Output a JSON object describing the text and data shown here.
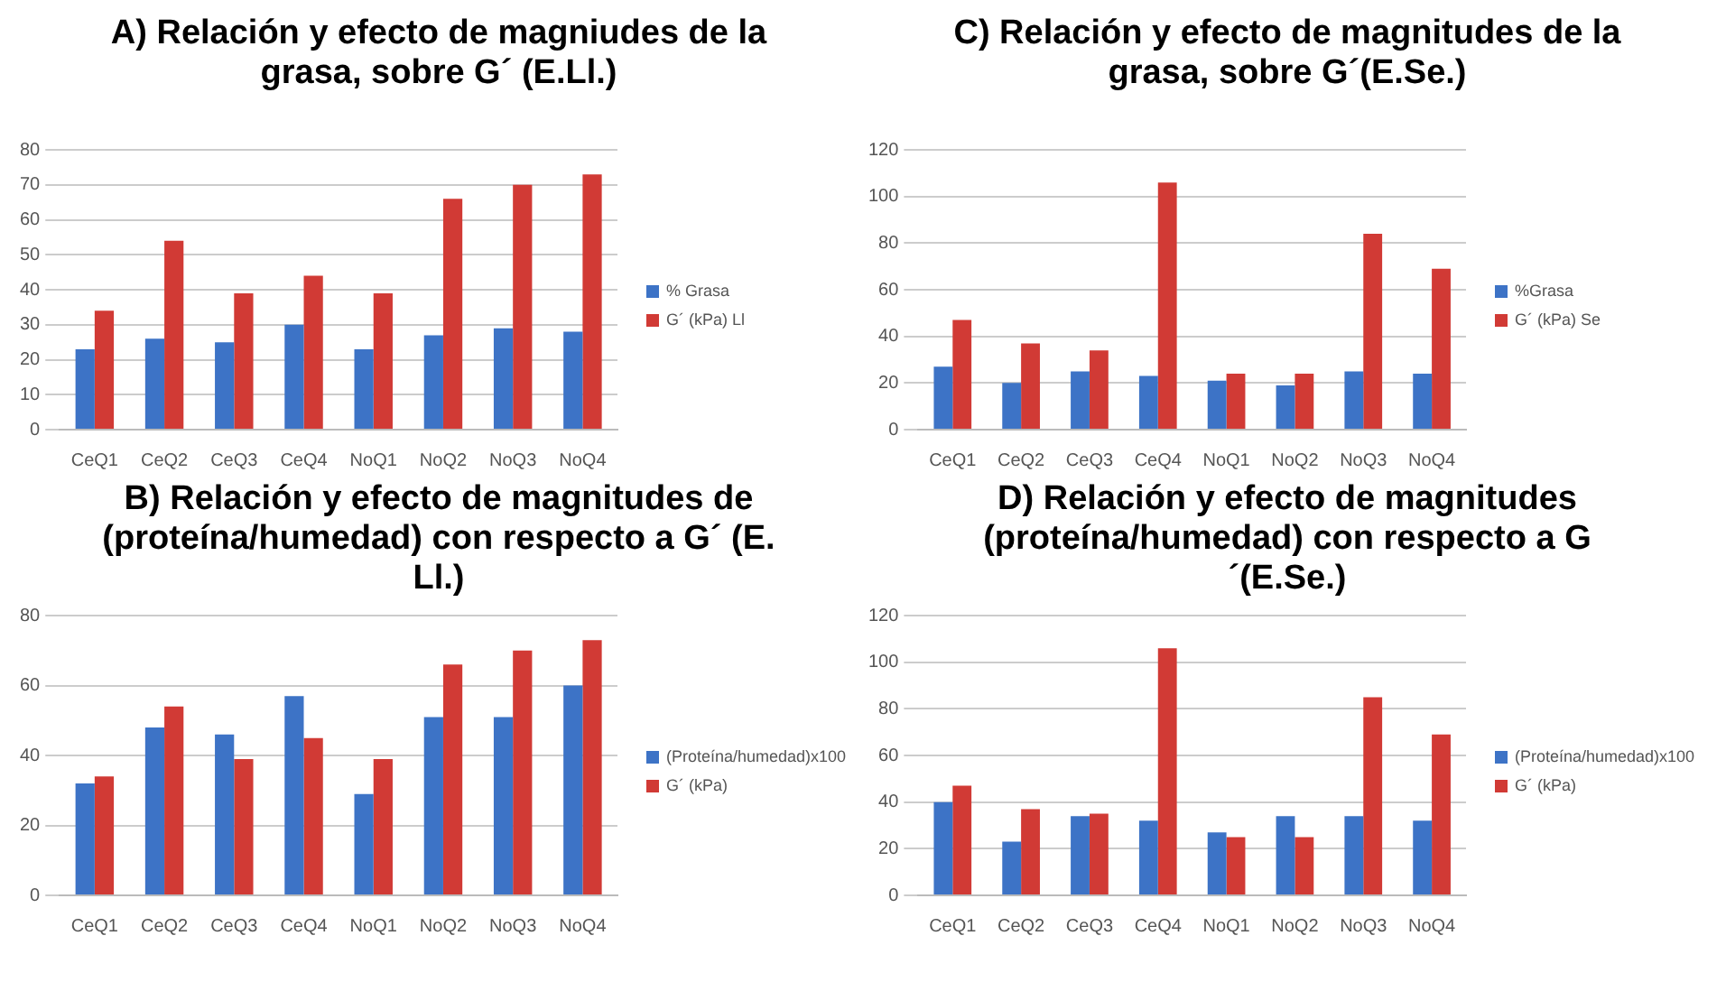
{
  "chart_data": [
    {
      "type": "bar",
      "title": "A) Relación y efecto de magniudes de la grasa, sobre G´ (E.Ll.)",
      "categories": [
        "CeQ1",
        "CeQ2",
        "CeQ3",
        "CeQ4",
        "NoQ1",
        "NoQ2",
        "NoQ3",
        "NoQ4"
      ],
      "series": [
        {
          "name": "% Grasa",
          "color": "#3d73c6",
          "values": [
            23,
            26,
            25,
            30,
            23,
            27,
            29,
            28
          ]
        },
        {
          "name": "G´ (kPa) Ll",
          "color": "#d13a35",
          "values": [
            34,
            54,
            39,
            44,
            39,
            66,
            70,
            73
          ]
        }
      ],
      "ylim": [
        0,
        80
      ],
      "yticks": [
        0,
        10,
        20,
        30,
        40,
        50,
        60,
        70,
        80
      ],
      "grid": "y",
      "legend": "right"
    },
    {
      "type": "bar",
      "title": "C) Relación y efecto de magnitudes de la grasa, sobre G´(E.Se.)",
      "categories": [
        "CeQ1",
        "CeQ2",
        "CeQ3",
        "CeQ4",
        "NoQ1",
        "NoQ2",
        "NoQ3",
        "NoQ4"
      ],
      "series": [
        {
          "name": "%Grasa",
          "color": "#3d73c6",
          "values": [
            27,
            20,
            25,
            23,
            21,
            19,
            25,
            24
          ]
        },
        {
          "name": "G´ (kPa) Se",
          "color": "#d13a35",
          "values": [
            47,
            37,
            34,
            106,
            24,
            24,
            84,
            69
          ]
        }
      ],
      "ylim": [
        0,
        120
      ],
      "yticks": [
        0,
        20,
        40,
        60,
        80,
        100,
        120
      ],
      "grid": "y",
      "legend": "right"
    },
    {
      "type": "bar",
      "title": "B) Relación y efecto de magnitudes de  (proteína/humedad) con respecto a G´ (E. Ll.)",
      "categories": [
        "CeQ1",
        "CeQ2",
        "CeQ3",
        "CeQ4",
        "NoQ1",
        "NoQ2",
        "NoQ3",
        "NoQ4"
      ],
      "series": [
        {
          "name": "(Proteína/humedad)x100",
          "color": "#3d73c6",
          "values": [
            32,
            48,
            46,
            57,
            29,
            51,
            51,
            60
          ]
        },
        {
          "name": "G´ (kPa)",
          "color": "#d13a35",
          "values": [
            34,
            54,
            39,
            45,
            39,
            66,
            70,
            73
          ]
        }
      ],
      "ylim": [
        0,
        80
      ],
      "yticks": [
        0,
        20,
        40,
        60,
        80
      ],
      "grid": "y",
      "legend": "right"
    },
    {
      "type": "bar",
      "title": "D) Relación y efecto de magnitudes (proteína/humedad) con respecto a G´(E.Se.)",
      "categories": [
        "CeQ1",
        "CeQ2",
        "CeQ3",
        "CeQ4",
        "NoQ1",
        "NoQ2",
        "NoQ3",
        "NoQ4"
      ],
      "series": [
        {
          "name": "(Proteína/humedad)x100",
          "color": "#3d73c6",
          "values": [
            40,
            23,
            34,
            32,
            27,
            34,
            34,
            32
          ]
        },
        {
          "name": "G´ (kPa)",
          "color": "#d13a35",
          "values": [
            47,
            37,
            35,
            106,
            25,
            25,
            85,
            69
          ]
        }
      ],
      "ylim": [
        0,
        120
      ],
      "yticks": [
        0,
        20,
        40,
        60,
        80,
        100,
        120
      ],
      "grid": "y",
      "legend": "right"
    }
  ]
}
